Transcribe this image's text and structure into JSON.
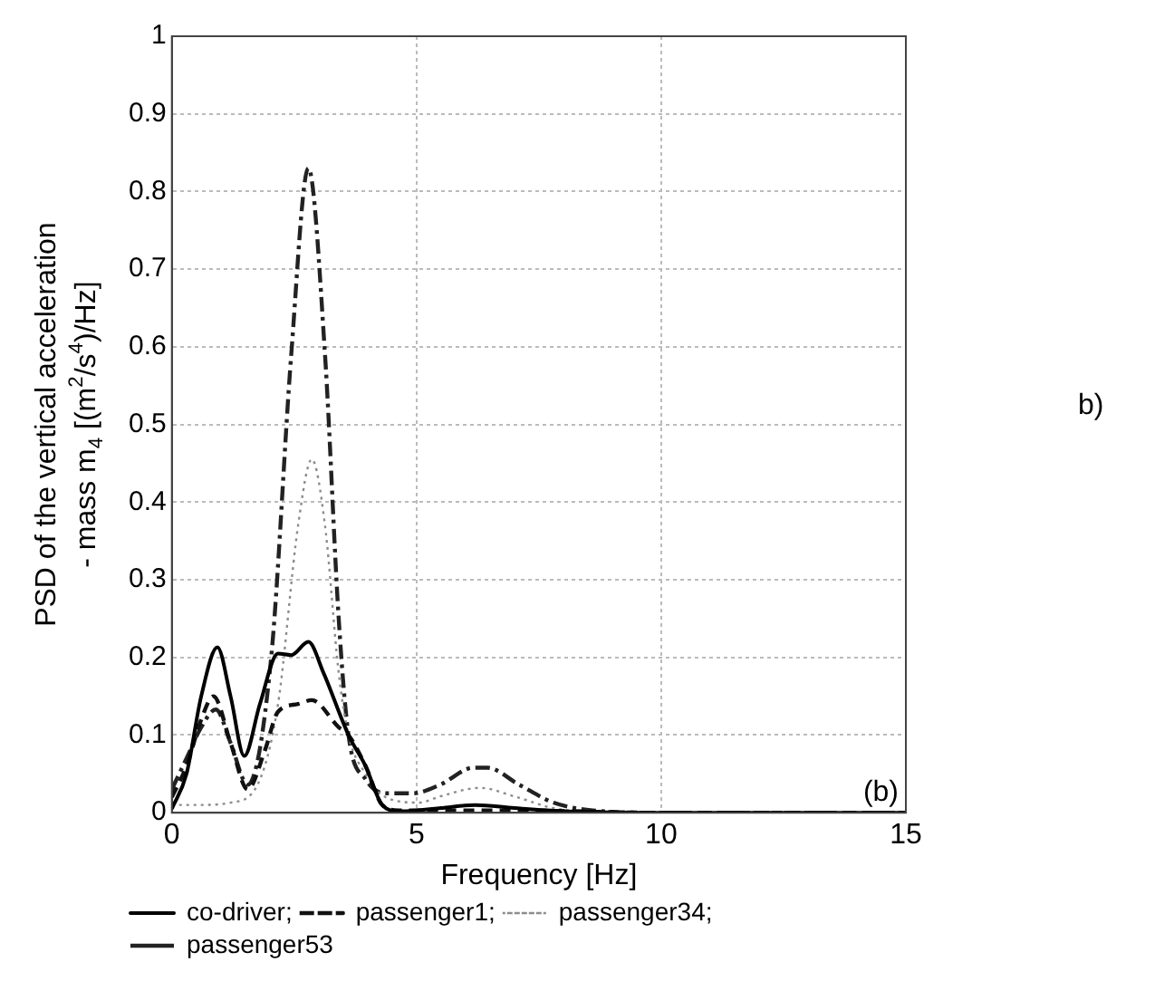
{
  "chart_data": {
    "type": "line",
    "xlabel": "Frequency [Hz]",
    "ylabel": "PSD of the vertical acceleration\n- mass m$_{4}$ [(m$^{2}$/s$^{4}$)/Hz]",
    "annotations": [
      "(b)",
      "b)"
    ],
    "xlim": [
      0,
      15
    ],
    "xticks": [
      0,
      5,
      10,
      15
    ],
    "ylim": [
      0,
      1
    ],
    "yticks": [
      0,
      0.1,
      0.2,
      0.3,
      0.4,
      0.5,
      0.6,
      0.7,
      0.8,
      0.9,
      1
    ],
    "grid": true,
    "legend": "bottom",
    "marker": "none",
    "series": [
      {
        "name": "co-driver;",
        "color": "#000000",
        "line_style": "solid",
        "x": [
          0,
          0.3,
          0.6,
          0.93,
          1.2,
          1.48,
          1.8,
          2.17,
          2.44,
          2.79,
          3.1,
          3.61,
          3.96,
          4.3,
          4.65,
          5,
          5.5,
          6.2,
          7,
          8,
          10,
          15
        ],
        "values": [
          0.005,
          0.05,
          0.15,
          0.213,
          0.15,
          0.073,
          0.14,
          0.205,
          0.203,
          0.22,
          0.18,
          0.1,
          0.06,
          0.01,
          0.002,
          0.003,
          0.006,
          0.01,
          0.006,
          0.002,
          0,
          0
        ]
      },
      {
        "name": "passenger1;",
        "color": "#111111",
        "line_style": "dashed",
        "x": [
          0,
          0.3,
          0.6,
          0.85,
          1.2,
          1.55,
          1.9,
          2.17,
          2.58,
          2.86,
          3.41,
          3.61,
          3.96,
          4.3,
          4.65,
          5,
          7,
          10,
          15
        ],
        "values": [
          0.02,
          0.06,
          0.12,
          0.15,
          0.09,
          0.03,
          0.08,
          0.13,
          0.14,
          0.145,
          0.11,
          0.1,
          0.06,
          0.01,
          0.003,
          0.003,
          0.003,
          0,
          0
        ]
      },
      {
        "name": "passenger34;",
        "color": "#8c8c8c",
        "line_style": "dotted",
        "x": [
          0,
          0.6,
          1.2,
          1.75,
          2.17,
          2.58,
          2.86,
          3.13,
          3.41,
          3.61,
          3.96,
          4.37,
          5.06,
          5.48,
          6.3,
          7,
          7.8,
          9,
          15
        ],
        "values": [
          0.01,
          0.01,
          0.013,
          0.036,
          0.14,
          0.37,
          0.455,
          0.37,
          0.18,
          0.1,
          0.05,
          0.02,
          0.013,
          0.021,
          0.032,
          0.021,
          0.006,
          0,
          0
        ]
      },
      {
        "name": "passenger53",
        "color": "#222222",
        "line_style": "dashdot",
        "x": [
          0,
          0.3,
          0.6,
          0.9,
          1.2,
          1.55,
          2.03,
          2.44,
          2.79,
          3.13,
          3.41,
          3.61,
          3.96,
          4.37,
          4.92,
          5.48,
          6.17,
          6.44,
          7.1,
          7.8,
          8.6,
          10,
          15
        ],
        "values": [
          0.03,
          0.07,
          0.11,
          0.133,
          0.09,
          0.036,
          0.2,
          0.59,
          0.83,
          0.59,
          0.25,
          0.1,
          0.043,
          0.025,
          0.025,
          0.036,
          0.058,
          0.058,
          0.036,
          0.013,
          0.003,
          0,
          0
        ]
      }
    ]
  }
}
